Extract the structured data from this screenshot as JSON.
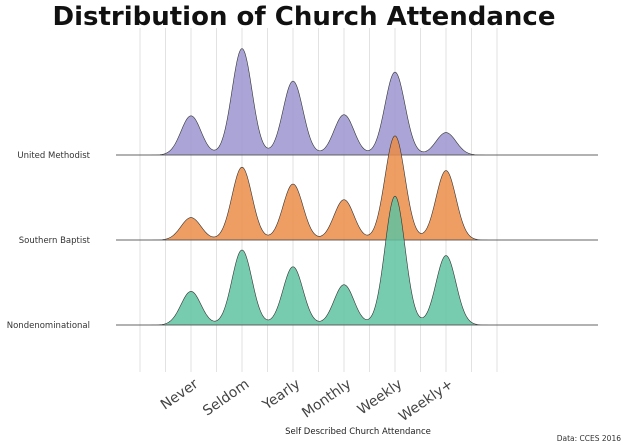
{
  "chart_data": {
    "type": "ridgeline",
    "title": "Distribution of Church Attendance",
    "xlabel": "Self Described Church Attendance",
    "ylabel": "",
    "caption": "Data: CCES 2016",
    "categories": [
      "Never",
      "Seldom",
      "Yearly",
      "Monthly",
      "Weekly",
      "Weekly+"
    ],
    "grid": true,
    "series": [
      {
        "name": "United Methodist",
        "color": "#9b95cf",
        "values": [
          0.35,
          0.95,
          0.66,
          0.36,
          0.74,
          0.2
        ]
      },
      {
        "name": "Southern Baptist",
        "color": "#eb8c48",
        "values": [
          0.2,
          0.65,
          0.5,
          0.36,
          0.93,
          0.62
        ]
      },
      {
        "name": "Nondenominational",
        "color": "#5fc2a0",
        "values": [
          0.3,
          0.67,
          0.52,
          0.36,
          1.15,
          0.62
        ]
      }
    ]
  }
}
